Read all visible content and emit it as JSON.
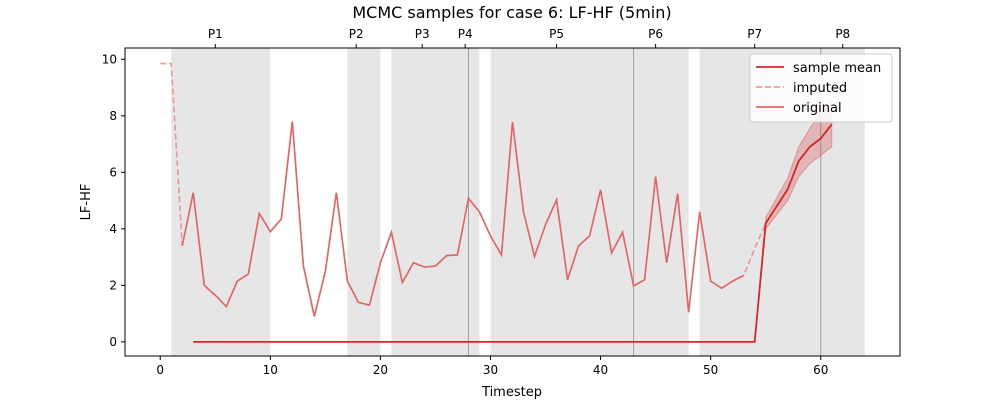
{
  "chart_data": {
    "type": "line",
    "title": "MCMC samples for case 6: LF-HF (5min)",
    "xlabel": "Timestep",
    "ylabel": "LF-HF",
    "xlim": [
      -3.2,
      67.2
    ],
    "ylim": [
      -0.5,
      10.4
    ],
    "xticks": [
      0,
      10,
      20,
      30,
      40,
      50,
      60
    ],
    "yticks": [
      0,
      2,
      4,
      6,
      8,
      10
    ],
    "grid": false,
    "legend_position": "upper right",
    "phase_spans": [
      {
        "label": "P1",
        "start": 1,
        "end": 10
      },
      {
        "label": "P2",
        "start": 17,
        "end": 20
      },
      {
        "label": "P3",
        "start": 21,
        "end": 28
      },
      {
        "label": "P4",
        "start": 28,
        "end": 29
      },
      {
        "label": "P5",
        "start": 30,
        "end": 43
      },
      {
        "label": "P6",
        "start": 43,
        "end": 48
      },
      {
        "label": "P7",
        "start": 49,
        "end": 60
      },
      {
        "label": "P8",
        "start": 60,
        "end": 64
      }
    ],
    "phase_label_positions": [
      {
        "label": "P1",
        "x": 5.0
      },
      {
        "label": "P2",
        "x": 17.8
      },
      {
        "label": "P3",
        "x": 23.8
      },
      {
        "label": "P4",
        "x": 27.7
      },
      {
        "label": "P5",
        "x": 36.0
      },
      {
        "label": "P6",
        "x": 45.0
      },
      {
        "label": "P7",
        "x": 54.0
      },
      {
        "label": "P8",
        "x": 62.0
      }
    ],
    "phase_dividers": [
      28,
      43,
      60
    ],
    "series": [
      {
        "name": "sample mean",
        "color": "#d62728",
        "style": "solid",
        "points": [
          [
            3,
            0
          ],
          [
            54,
            0
          ],
          [
            55,
            4.2
          ],
          [
            56,
            4.8
          ],
          [
            57,
            5.4
          ],
          [
            58,
            6.4
          ],
          [
            59,
            6.9
          ],
          [
            60,
            7.2
          ],
          [
            61,
            7.7
          ]
        ],
        "band_lower": [
          [
            54,
            0
          ],
          [
            55,
            4.0
          ],
          [
            56,
            4.5
          ],
          [
            57,
            5.0
          ],
          [
            58,
            5.85
          ],
          [
            59,
            6.3
          ],
          [
            60,
            6.6
          ],
          [
            61,
            6.9
          ]
        ],
        "band_upper": [
          [
            54,
            0
          ],
          [
            55,
            4.4
          ],
          [
            56,
            5.1
          ],
          [
            57,
            5.8
          ],
          [
            58,
            6.9
          ],
          [
            59,
            7.55
          ],
          [
            60,
            8.1
          ],
          [
            61,
            8.5
          ]
        ]
      },
      {
        "name": "imputed",
        "color": "#f08080",
        "style": "dashed",
        "points": [
          [
            0,
            9.85
          ],
          [
            1,
            9.85
          ],
          [
            2,
            3.4
          ],
          [
            3,
            5.28
          ],
          [
            4,
            2.0
          ],
          [
            5,
            1.65
          ],
          [
            6,
            1.25
          ],
          [
            7,
            2.15
          ],
          [
            8,
            2.4
          ],
          [
            9,
            4.55
          ],
          [
            10,
            3.9
          ],
          [
            11,
            4.35
          ],
          [
            12,
            7.8
          ],
          [
            13,
            2.7
          ],
          [
            14,
            0.9
          ],
          [
            15,
            2.5
          ],
          [
            16,
            5.28
          ],
          [
            17,
            2.15
          ],
          [
            18,
            1.4
          ],
          [
            19,
            1.3
          ],
          [
            20,
            2.8
          ],
          [
            21,
            3.88
          ],
          [
            22,
            2.1
          ],
          [
            23,
            2.8
          ],
          [
            24,
            2.65
          ],
          [
            25,
            2.68
          ],
          [
            26,
            3.05
          ],
          [
            27,
            3.08
          ],
          [
            28,
            5.08
          ],
          [
            29,
            4.6
          ],
          [
            30,
            3.75
          ],
          [
            31,
            3.08
          ],
          [
            32,
            7.78
          ],
          [
            33,
            4.6
          ],
          [
            34,
            3.02
          ],
          [
            35,
            4.15
          ],
          [
            36,
            5.03
          ],
          [
            37,
            2.2
          ],
          [
            38,
            3.4
          ],
          [
            39,
            3.75
          ],
          [
            40,
            5.38
          ],
          [
            41,
            3.15
          ],
          [
            42,
            3.88
          ],
          [
            43,
            1.98
          ],
          [
            44,
            2.2
          ],
          [
            45,
            5.85
          ],
          [
            46,
            2.8
          ],
          [
            47,
            5.25
          ],
          [
            48,
            1.05
          ],
          [
            49,
            4.6
          ],
          [
            50,
            2.15
          ],
          [
            51,
            1.9
          ],
          [
            52,
            2.15
          ],
          [
            53,
            2.35
          ],
          [
            54,
            3.3
          ],
          [
            55,
            4.2
          ],
          [
            56,
            4.8
          ],
          [
            57,
            5.4
          ],
          [
            58,
            6.4
          ],
          [
            59,
            6.9
          ],
          [
            60,
            7.2
          ],
          [
            61,
            7.7
          ]
        ]
      },
      {
        "name": "original",
        "color": "#e06666",
        "style": "solid",
        "points": [
          [
            2,
            3.4
          ],
          [
            3,
            5.28
          ],
          [
            4,
            2.0
          ],
          [
            5,
            1.65
          ],
          [
            6,
            1.25
          ],
          [
            7,
            2.15
          ],
          [
            8,
            2.4
          ],
          [
            9,
            4.55
          ],
          [
            10,
            3.9
          ],
          [
            11,
            4.35
          ],
          [
            12,
            7.8
          ],
          [
            13,
            2.7
          ],
          [
            14,
            0.9
          ],
          [
            15,
            2.5
          ],
          [
            16,
            5.28
          ],
          [
            17,
            2.15
          ],
          [
            18,
            1.4
          ],
          [
            19,
            1.3
          ],
          [
            20,
            2.8
          ],
          [
            21,
            3.88
          ],
          [
            22,
            2.1
          ],
          [
            23,
            2.8
          ],
          [
            24,
            2.65
          ],
          [
            25,
            2.68
          ],
          [
            26,
            3.05
          ],
          [
            27,
            3.08
          ],
          [
            28,
            5.08
          ],
          [
            29,
            4.6
          ],
          [
            30,
            3.75
          ],
          [
            31,
            3.08
          ],
          [
            32,
            7.78
          ],
          [
            33,
            4.6
          ],
          [
            34,
            3.02
          ],
          [
            35,
            4.15
          ],
          [
            36,
            5.03
          ],
          [
            37,
            2.2
          ],
          [
            38,
            3.4
          ],
          [
            39,
            3.75
          ],
          [
            40,
            5.38
          ],
          [
            41,
            3.15
          ],
          [
            42,
            3.88
          ],
          [
            43,
            1.98
          ],
          [
            44,
            2.2
          ],
          [
            45,
            5.85
          ],
          [
            46,
            2.8
          ],
          [
            47,
            5.25
          ],
          [
            48,
            1.05
          ],
          [
            49,
            4.6
          ],
          [
            50,
            2.15
          ],
          [
            51,
            1.9
          ],
          [
            52,
            2.15
          ],
          [
            53,
            2.35
          ]
        ]
      }
    ]
  }
}
